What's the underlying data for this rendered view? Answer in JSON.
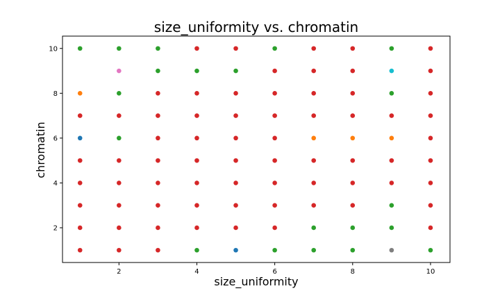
{
  "chart_data": {
    "type": "scatter",
    "title": "size_uniformity vs. chromatin",
    "xlabel": "size_uniformity",
    "ylabel": "chromatin",
    "xlim": [
      0.55,
      10.5
    ],
    "ylim": [
      0.45,
      10.55
    ],
    "xticks": [
      2,
      4,
      6,
      8,
      10
    ],
    "yticks": [
      2,
      4,
      6,
      8,
      10
    ],
    "grid": false,
    "legend": "none",
    "colors": {
      "blue": "#1f77b4",
      "orange": "#ff7f0e",
      "green": "#2ca02c",
      "red": "#d62728",
      "pink": "#e377c2",
      "gray": "#7f7f7f",
      "cyan": "#17becf"
    },
    "points": [
      {
        "x": 1,
        "y": 10,
        "c": "green"
      },
      {
        "x": 2,
        "y": 10,
        "c": "green"
      },
      {
        "x": 3,
        "y": 10,
        "c": "green"
      },
      {
        "x": 4,
        "y": 10,
        "c": "red"
      },
      {
        "x": 5,
        "y": 10,
        "c": "red"
      },
      {
        "x": 6,
        "y": 10,
        "c": "green"
      },
      {
        "x": 7,
        "y": 10,
        "c": "red"
      },
      {
        "x": 8,
        "y": 10,
        "c": "red"
      },
      {
        "x": 9,
        "y": 10,
        "c": "green"
      },
      {
        "x": 10,
        "y": 10,
        "c": "red"
      },
      {
        "x": 2,
        "y": 9,
        "c": "pink"
      },
      {
        "x": 3,
        "y": 9,
        "c": "green"
      },
      {
        "x": 4,
        "y": 9,
        "c": "green"
      },
      {
        "x": 5,
        "y": 9,
        "c": "green"
      },
      {
        "x": 6,
        "y": 9,
        "c": "red"
      },
      {
        "x": 7,
        "y": 9,
        "c": "red"
      },
      {
        "x": 8,
        "y": 9,
        "c": "red"
      },
      {
        "x": 9,
        "y": 9,
        "c": "cyan"
      },
      {
        "x": 10,
        "y": 9,
        "c": "red"
      },
      {
        "x": 1,
        "y": 8,
        "c": "orange"
      },
      {
        "x": 2,
        "y": 8,
        "c": "green"
      },
      {
        "x": 3,
        "y": 8,
        "c": "red"
      },
      {
        "x": 4,
        "y": 8,
        "c": "red"
      },
      {
        "x": 5,
        "y": 8,
        "c": "red"
      },
      {
        "x": 6,
        "y": 8,
        "c": "red"
      },
      {
        "x": 7,
        "y": 8,
        "c": "red"
      },
      {
        "x": 8,
        "y": 8,
        "c": "red"
      },
      {
        "x": 9,
        "y": 8,
        "c": "green"
      },
      {
        "x": 10,
        "y": 8,
        "c": "red"
      },
      {
        "x": 1,
        "y": 7,
        "c": "red"
      },
      {
        "x": 2,
        "y": 7,
        "c": "red"
      },
      {
        "x": 3,
        "y": 7,
        "c": "red"
      },
      {
        "x": 4,
        "y": 7,
        "c": "red"
      },
      {
        "x": 5,
        "y": 7,
        "c": "red"
      },
      {
        "x": 6,
        "y": 7,
        "c": "red"
      },
      {
        "x": 7,
        "y": 7,
        "c": "red"
      },
      {
        "x": 8,
        "y": 7,
        "c": "red"
      },
      {
        "x": 9,
        "y": 7,
        "c": "red"
      },
      {
        "x": 10,
        "y": 7,
        "c": "red"
      },
      {
        "x": 1,
        "y": 6,
        "c": "blue"
      },
      {
        "x": 2,
        "y": 6,
        "c": "green"
      },
      {
        "x": 3,
        "y": 6,
        "c": "red"
      },
      {
        "x": 4,
        "y": 6,
        "c": "red"
      },
      {
        "x": 5,
        "y": 6,
        "c": "red"
      },
      {
        "x": 6,
        "y": 6,
        "c": "red"
      },
      {
        "x": 7,
        "y": 6,
        "c": "orange"
      },
      {
        "x": 8,
        "y": 6,
        "c": "orange"
      },
      {
        "x": 9,
        "y": 6,
        "c": "orange"
      },
      {
        "x": 10,
        "y": 6,
        "c": "red"
      },
      {
        "x": 1,
        "y": 5,
        "c": "red"
      },
      {
        "x": 2,
        "y": 5,
        "c": "red"
      },
      {
        "x": 3,
        "y": 5,
        "c": "red"
      },
      {
        "x": 4,
        "y": 5,
        "c": "red"
      },
      {
        "x": 5,
        "y": 5,
        "c": "red"
      },
      {
        "x": 6,
        "y": 5,
        "c": "red"
      },
      {
        "x": 7,
        "y": 5,
        "c": "red"
      },
      {
        "x": 8,
        "y": 5,
        "c": "red"
      },
      {
        "x": 9,
        "y": 5,
        "c": "red"
      },
      {
        "x": 10,
        "y": 5,
        "c": "red"
      },
      {
        "x": 1,
        "y": 4,
        "c": "red"
      },
      {
        "x": 2,
        "y": 4,
        "c": "red"
      },
      {
        "x": 3,
        "y": 4,
        "c": "red"
      },
      {
        "x": 4,
        "y": 4,
        "c": "red"
      },
      {
        "x": 5,
        "y": 4,
        "c": "red"
      },
      {
        "x": 6,
        "y": 4,
        "c": "red"
      },
      {
        "x": 7,
        "y": 4,
        "c": "red"
      },
      {
        "x": 8,
        "y": 4,
        "c": "red"
      },
      {
        "x": 9,
        "y": 4,
        "c": "red"
      },
      {
        "x": 10,
        "y": 4,
        "c": "red"
      },
      {
        "x": 1,
        "y": 3,
        "c": "red"
      },
      {
        "x": 2,
        "y": 3,
        "c": "red"
      },
      {
        "x": 3,
        "y": 3,
        "c": "red"
      },
      {
        "x": 4,
        "y": 3,
        "c": "red"
      },
      {
        "x": 5,
        "y": 3,
        "c": "red"
      },
      {
        "x": 6,
        "y": 3,
        "c": "red"
      },
      {
        "x": 7,
        "y": 3,
        "c": "red"
      },
      {
        "x": 8,
        "y": 3,
        "c": "red"
      },
      {
        "x": 9,
        "y": 3,
        "c": "green"
      },
      {
        "x": 10,
        "y": 3,
        "c": "red"
      },
      {
        "x": 1,
        "y": 2,
        "c": "red"
      },
      {
        "x": 2,
        "y": 2,
        "c": "red"
      },
      {
        "x": 3,
        "y": 2,
        "c": "red"
      },
      {
        "x": 4,
        "y": 2,
        "c": "red"
      },
      {
        "x": 5,
        "y": 2,
        "c": "red"
      },
      {
        "x": 6,
        "y": 2,
        "c": "red"
      },
      {
        "x": 7,
        "y": 2,
        "c": "green"
      },
      {
        "x": 8,
        "y": 2,
        "c": "green"
      },
      {
        "x": 9,
        "y": 2,
        "c": "green"
      },
      {
        "x": 10,
        "y": 2,
        "c": "red"
      },
      {
        "x": 1,
        "y": 1,
        "c": "red"
      },
      {
        "x": 2,
        "y": 1,
        "c": "red"
      },
      {
        "x": 3,
        "y": 1,
        "c": "red"
      },
      {
        "x": 4,
        "y": 1,
        "c": "green"
      },
      {
        "x": 5,
        "y": 1,
        "c": "blue"
      },
      {
        "x": 6,
        "y": 1,
        "c": "green"
      },
      {
        "x": 7,
        "y": 1,
        "c": "green"
      },
      {
        "x": 8,
        "y": 1,
        "c": "green"
      },
      {
        "x": 9,
        "y": 1,
        "c": "gray"
      },
      {
        "x": 10,
        "y": 1,
        "c": "green"
      }
    ]
  }
}
